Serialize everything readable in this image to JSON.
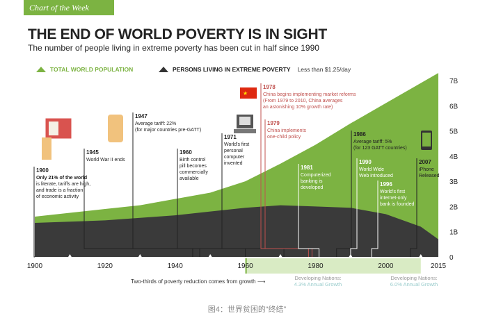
{
  "header": {
    "ribbon": "Chart of the Week",
    "title": "THE END OF WORLD POVERTY IS IN SIGHT",
    "subtitle": "The number of people living in extreme poverty has been cut in half since 1990"
  },
  "legend": {
    "population": "TOTAL WORLD POPULATION",
    "poverty": "PERSONS LIVING IN EXTREME POVERTY",
    "poverty_note": "Less than $1.25/day"
  },
  "colors": {
    "population": "#7cb342",
    "poverty": "#3a3a3a",
    "accent": "#c0504d",
    "ribbon": "#7cb342"
  },
  "chart_data": {
    "type": "area",
    "x": [
      1900,
      1910,
      1920,
      1930,
      1940,
      1950,
      1960,
      1970,
      1980,
      1990,
      2000,
      2010,
      2015
    ],
    "series": [
      {
        "name": "TOTAL WORLD POPULATION",
        "values": [
          1.6,
          1.75,
          1.9,
          2.05,
          2.3,
          2.55,
          3.0,
          3.7,
          4.45,
          5.3,
          6.1,
          6.9,
          7.3
        ]
      },
      {
        "name": "PERSONS LIVING IN EXTREME POVERTY",
        "values": [
          1.35,
          1.4,
          1.45,
          1.55,
          1.65,
          1.8,
          1.95,
          2.05,
          2.0,
          1.95,
          1.7,
          1.2,
          0.7
        ]
      }
    ],
    "ylim": [
      0,
      7
    ],
    "yticks": [
      "1B",
      "2B",
      "3B",
      "4B",
      "5B",
      "6B",
      "7B"
    ],
    "xticks": [
      "1900",
      "1920",
      "1940",
      "1960",
      "1980",
      "2000",
      "2015"
    ]
  },
  "annotations": [
    {
      "year": "1900",
      "lines": [
        "Only 21% of the world",
        "is literate, tariffs are high,",
        "and trade is a fraction",
        "of economic activity"
      ],
      "bold_first": true
    },
    {
      "year": "1945",
      "lines": [
        "World War II ends"
      ]
    },
    {
      "year": "1947",
      "lines": [
        "Average tariff: 22%",
        "(for major countries pre-GATT)"
      ]
    },
    {
      "year": "1960",
      "lines": [
        "Birth control",
        "pill becomes",
        "commercially",
        "available"
      ]
    },
    {
      "year": "1971",
      "lines": [
        "World's first",
        "personal",
        "computer",
        "invented"
      ]
    },
    {
      "year": "1978",
      "lines": [
        "China begins implementing market reforms",
        "(From 1979 to 2010, China averages",
        "an astonishing 10% growth rate)"
      ]
    },
    {
      "year": "1979",
      "lines": [
        "China implements",
        "one-child policy"
      ]
    },
    {
      "year": "1981",
      "lines": [
        "Computerized",
        "banking is",
        "developed"
      ]
    },
    {
      "year": "1986",
      "lines": [
        "Average tariff: 5%",
        "(for 123 GATT countries)"
      ]
    },
    {
      "year": "1990",
      "lines": [
        "World Wide",
        "Web introduced"
      ]
    },
    {
      "year": "1996",
      "lines": [
        "World's first",
        "internet-only",
        "bank is founded"
      ]
    },
    {
      "year": "2007",
      "lines": [
        "iPhone",
        "Released"
      ]
    }
  ],
  "footer": {
    "note": "Two-thirds of poverty reduction comes from growth",
    "dev1_label": "Developing Nations:",
    "dev1_rate": "4.3% Annual Growth",
    "dev2_label": "Developing Nations:",
    "dev2_rate": "6.0% Annual Growth"
  },
  "caption": "图4：世界贫困的“终结”"
}
